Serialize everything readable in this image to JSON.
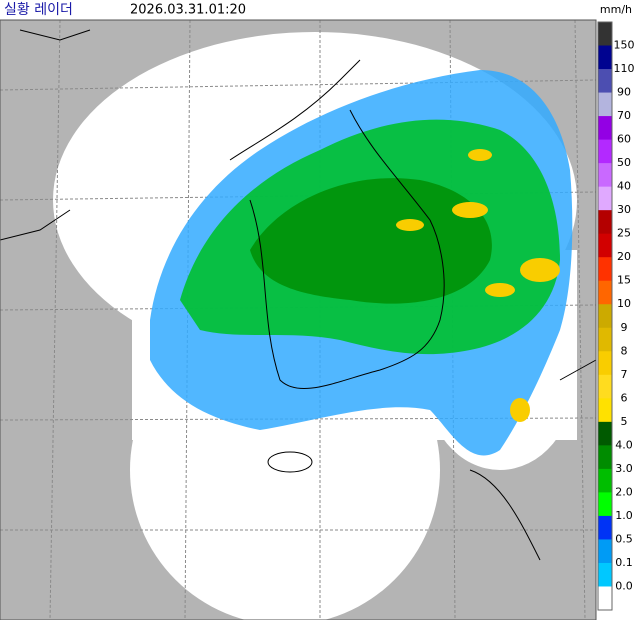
{
  "header": {
    "title": "실황 레이더",
    "timestamp": "2026.03.31.01:20"
  },
  "legend": {
    "unit": "mm/h",
    "labels": [
      "150",
      "110",
      "90",
      "70",
      "60",
      "50",
      "40",
      "30",
      "25",
      "20",
      "15",
      "10",
      "9",
      "8",
      "7",
      "6",
      "5",
      "4.0",
      "3.0",
      "2.0",
      "1.0",
      "0.5",
      "0.1",
      "0.0"
    ],
    "colors": [
      "#333333",
      "#000390",
      "#4c4eb1",
      "#b3b4de",
      "#9300e4",
      "#b329ff",
      "#c969ff",
      "#e0a9ff",
      "#b40000",
      "#d20000",
      "#ff3200",
      "#ff6600",
      "#ccaa00",
      "#e0b900",
      "#f9cd00",
      "#ffdc1f",
      "#ffe100",
      "#005a00",
      "#008c00",
      "#00be00",
      "#00ff00",
      "#0033f5",
      "#009bf5",
      "#00c8ff",
      "#ffffff"
    ]
  }
}
